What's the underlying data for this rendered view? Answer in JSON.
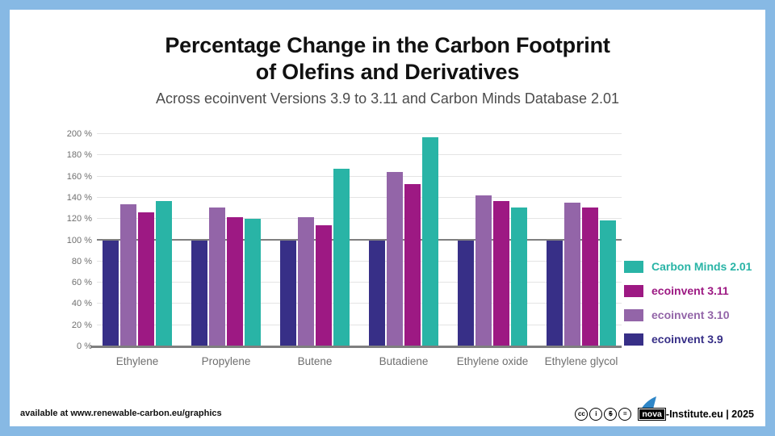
{
  "frame": {
    "border_color": "#87b9e4",
    "background": "#ffffff"
  },
  "header": {
    "title_line1": "Percentage Change in the Carbon Footprint",
    "title_line2": "of Olefins and Derivatives",
    "subtitle": "Across ecoinvent Versions 3.9 to 3.11 and Carbon Minds Database 2.01"
  },
  "chart_data": {
    "type": "bar",
    "categories": [
      "Ethylene",
      "Propylene",
      "Butene",
      "Butadiene",
      "Ethylene oxide",
      "Ethylene glycol"
    ],
    "series": [
      {
        "name": "ecoinvent 3.9",
        "color": "#372f87",
        "values": [
          100,
          100,
          100,
          100,
          100,
          100
        ]
      },
      {
        "name": "ecoinvent 3.10",
        "color": "#9365a8",
        "values": [
          134,
          131,
          122,
          164,
          142,
          135
        ]
      },
      {
        "name": "ecoinvent 3.11",
        "color": "#9d1983",
        "values": [
          126,
          122,
          114,
          153,
          137,
          131
        ]
      },
      {
        "name": "Carbon Minds 2.01",
        "color": "#29b4a6",
        "values": [
          137,
          120,
          167,
          197,
          131,
          119
        ]
      }
    ],
    "title": "Percentage Change in the Carbon Footprint of Olefins and Derivatives",
    "subtitle": "Across ecoinvent Versions 3.9 to 3.11 and Carbon Minds Database 2.01",
    "xlabel": "",
    "ylabel": "",
    "ylim": [
      0,
      200
    ],
    "ytick_step": 20,
    "ytick_suffix": " %",
    "grid": true,
    "reference_line": 100,
    "legend_position": "right"
  },
  "legend": {
    "items": [
      {
        "label": "Carbon Minds 2.01",
        "color": "#29b4a6"
      },
      {
        "label": "ecoinvent 3.11",
        "color": "#9d1983"
      },
      {
        "label": "ecoinvent 3.10",
        "color": "#9365a8"
      },
      {
        "label": "ecoinvent 3.9",
        "color": "#372f87"
      }
    ]
  },
  "footer": {
    "availability": "available at www.renewable-carbon.eu/graphics",
    "license_icons": [
      {
        "name": "cc-license-icon",
        "glyph": "cc"
      },
      {
        "name": "cc-by-icon",
        "glyph": "i"
      },
      {
        "name": "cc-nc-icon",
        "glyph": "$"
      },
      {
        "name": "cc-nd-icon",
        "glyph": "="
      }
    ],
    "logo_text": "nova",
    "credit": "-Institute.eu | 2025"
  }
}
